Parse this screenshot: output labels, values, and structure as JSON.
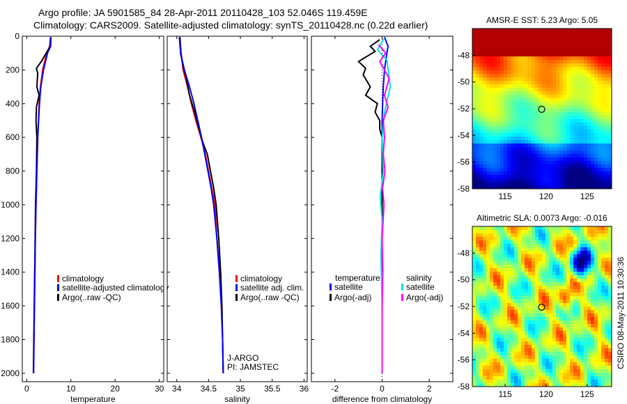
{
  "title_line1": "Argo profile: JA 5901585_84 28-Apr-2011 20110428_103 52.046S 119.459E",
  "title_line2": "Climatology: CARS2009. Satellite-adjusted climatology: synTS_20110428.nc (0.22d earlier)",
  "stamp": "CSIRO 08-May-2011 10:30:36",
  "colors": {
    "clim": "#ff0000",
    "sat": "#0000ff",
    "argo": "#000000",
    "sat_s": "#00e5e5",
    "argo_s": "#ff00ff"
  },
  "chart_data": [
    {
      "type": "line",
      "xlabel": "temperature",
      "ylabel": "",
      "xlim": [
        -1,
        31
      ],
      "ylim": [
        2050,
        0
      ],
      "xticks": [
        0,
        10,
        20,
        30
      ],
      "yticks": [
        0,
        200,
        400,
        600,
        800,
        1000,
        1200,
        1400,
        1600,
        1800,
        2000
      ],
      "legend": [
        "climatology",
        "satellite-adjusted climatology",
        "Argo(..raw -QC)"
      ],
      "series": [
        {
          "name": "climatology",
          "color": "clim",
          "points": [
            [
              5.4,
              10
            ],
            [
              5.2,
              60
            ],
            [
              4.5,
              100
            ],
            [
              3.6,
              200
            ],
            [
              3.1,
              300
            ],
            [
              2.8,
              400
            ],
            [
              2.5,
              600
            ],
            [
              2.3,
              800
            ],
            [
              2.1,
              1000
            ],
            [
              1.95,
              1200
            ],
            [
              1.85,
              1400
            ],
            [
              1.75,
              1600
            ],
            [
              1.65,
              1800
            ],
            [
              1.55,
              2000
            ]
          ]
        },
        {
          "name": "argo",
          "color": "argo",
          "points": [
            [
              5.4,
              5
            ],
            [
              5.3,
              60
            ],
            [
              4.4,
              100
            ],
            [
              3.3,
              150
            ],
            [
              2.2,
              190
            ],
            [
              2.5,
              220
            ],
            [
              2.3,
              300
            ],
            [
              2.8,
              350
            ],
            [
              2.2,
              420
            ],
            [
              2.1,
              500
            ],
            [
              2.3,
              600
            ],
            [
              2.2,
              800
            ],
            [
              2.0,
              1000
            ],
            [
              1.9,
              1200
            ],
            [
              1.8,
              1400
            ],
            [
              1.7,
              1600
            ],
            [
              1.6,
              1800
            ],
            [
              1.5,
              2000
            ]
          ]
        },
        {
          "name": "satellite-adjusted",
          "color": "sat",
          "points": [
            [
              5.5,
              5
            ],
            [
              5.4,
              60
            ],
            [
              4.7,
              100
            ],
            [
              3.8,
              200
            ],
            [
              3.2,
              300
            ],
            [
              2.9,
              400
            ],
            [
              2.5,
              600
            ],
            [
              2.3,
              800
            ],
            [
              2.1,
              1000
            ],
            [
              1.95,
              1200
            ],
            [
              1.85,
              1400
            ],
            [
              1.75,
              1600
            ],
            [
              1.65,
              1800
            ],
            [
              1.55,
              2000
            ]
          ]
        }
      ]
    },
    {
      "type": "line",
      "xlabel": "salinity",
      "ylabel": "",
      "xlim": [
        33.85,
        36.05
      ],
      "ylim": [
        2050,
        0
      ],
      "xticks": [
        34,
        34.5,
        35,
        35.5,
        36
      ],
      "yticks": [
        0,
        200,
        400,
        600,
        800,
        1000,
        1200,
        1400,
        1600,
        1800,
        2000
      ],
      "legend": [
        "climatology",
        "satellite adj. clim.",
        "Argo(..raw -QC)"
      ],
      "annotations": [
        "J-ARGO",
        "PI: JAMSTEC"
      ],
      "series": [
        {
          "name": "climatology",
          "color": "clim",
          "points": [
            [
              34.05,
              10
            ],
            [
              34.07,
              100
            ],
            [
              34.1,
              200
            ],
            [
              34.17,
              300
            ],
            [
              34.23,
              400
            ],
            [
              34.3,
              500
            ],
            [
              34.38,
              600
            ],
            [
              34.45,
              700
            ],
            [
              34.5,
              800
            ],
            [
              34.55,
              900
            ],
            [
              34.6,
              1000
            ],
            [
              34.63,
              1200
            ],
            [
              34.67,
              1400
            ],
            [
              34.7,
              1600
            ],
            [
              34.72,
              1800
            ],
            [
              34.73,
              2000
            ]
          ]
        },
        {
          "name": "argo",
          "color": "argo",
          "points": [
            [
              34.05,
              5
            ],
            [
              34.06,
              100
            ],
            [
              34.1,
              180
            ],
            [
              34.15,
              250
            ],
            [
              34.2,
              350
            ],
            [
              34.28,
              450
            ],
            [
              34.35,
              550
            ],
            [
              34.4,
              620
            ],
            [
              34.48,
              700
            ],
            [
              34.53,
              800
            ],
            [
              34.58,
              900
            ],
            [
              34.62,
              1000
            ],
            [
              34.66,
              1200
            ],
            [
              34.69,
              1400
            ],
            [
              34.71,
              1600
            ],
            [
              34.72,
              1800
            ],
            [
              34.73,
              2000
            ]
          ]
        },
        {
          "name": "satellite-adjusted",
          "color": "sat",
          "points": [
            [
              34.04,
              5
            ],
            [
              34.06,
              100
            ],
            [
              34.12,
              200
            ],
            [
              34.2,
              300
            ],
            [
              34.27,
              400
            ],
            [
              34.33,
              500
            ],
            [
              34.39,
              600
            ],
            [
              34.44,
              700
            ],
            [
              34.49,
              800
            ],
            [
              34.54,
              900
            ],
            [
              34.58,
              1000
            ],
            [
              34.63,
              1200
            ],
            [
              34.67,
              1400
            ],
            [
              34.7,
              1600
            ],
            [
              34.72,
              1800
            ],
            [
              34.73,
              2000
            ]
          ]
        }
      ]
    },
    {
      "type": "line",
      "xlabel": "difference from climatology",
      "ylabel": "",
      "xlim": [
        -3,
        3
      ],
      "ylim": [
        2050,
        0
      ],
      "xticks": [
        -2,
        0,
        2
      ],
      "yticks": [
        0,
        200,
        400,
        600,
        800,
        1000,
        1200,
        1400,
        1600,
        1800,
        2000
      ],
      "legend_headers": [
        "temperature",
        "salinity"
      ],
      "legend": [
        "satellite",
        "Argo(-adj)",
        "satellite",
        "Argo(-adj)"
      ],
      "series": [
        {
          "name": "temperature satellite",
          "color": "sat",
          "points": [
            [
              0.1,
              5
            ],
            [
              0.25,
              60
            ],
            [
              0.2,
              100
            ],
            [
              0.1,
              200
            ],
            [
              0.05,
              300
            ],
            [
              0.02,
              400
            ],
            [
              0,
              500
            ],
            [
              0,
              800
            ],
            [
              0,
              1200
            ],
            [
              0,
              1600
            ],
            [
              0,
              2000
            ]
          ]
        },
        {
          "name": "temperature Argo(-adj)",
          "color": "argo",
          "points": [
            [
              -0.1,
              20
            ],
            [
              -0.5,
              60
            ],
            [
              -0.3,
              90
            ],
            [
              -1.0,
              150
            ],
            [
              -0.7,
              190
            ],
            [
              -0.8,
              230
            ],
            [
              -0.5,
              300
            ],
            [
              -0.7,
              350
            ],
            [
              -0.2,
              400
            ],
            [
              -0.3,
              450
            ],
            [
              -0.1,
              500
            ],
            [
              -0.1,
              550
            ],
            [
              0,
              600
            ],
            [
              0,
              800
            ],
            [
              0,
              1000
            ],
            [
              0,
              1400
            ],
            [
              0,
              1800
            ],
            [
              0,
              2000
            ]
          ]
        },
        {
          "name": "salinity satellite",
          "color": "sat_s",
          "points": [
            [
              0.1,
              10
            ],
            [
              -0.2,
              80
            ],
            [
              0.2,
              140
            ],
            [
              0.35,
              300
            ],
            [
              0.1,
              450
            ],
            [
              0,
              600
            ],
            [
              0.05,
              800
            ],
            [
              -0.08,
              950
            ],
            [
              0,
              1100
            ],
            [
              -0.05,
              1300
            ],
            [
              0,
              1600
            ],
            [
              0,
              2000
            ]
          ]
        },
        {
          "name": "salinity Argo(-adj)",
          "color": "argo_s",
          "points": [
            [
              -0.15,
              50
            ],
            [
              0.15,
              100
            ],
            [
              -0.1,
              150
            ],
            [
              0.3,
              250
            ],
            [
              0.1,
              350
            ],
            [
              0.25,
              420
            ],
            [
              0.05,
              500
            ],
            [
              0.1,
              600
            ],
            [
              0.05,
              700
            ],
            [
              0.12,
              800
            ],
            [
              0.02,
              900
            ],
            [
              0.08,
              1000
            ],
            [
              0,
              1200
            ],
            [
              0.03,
              1400
            ],
            [
              0,
              1600
            ],
            [
              0,
              2000
            ]
          ]
        }
      ]
    },
    {
      "type": "heatmap",
      "title": "AMSR-E SST: 5.23 Argo: 5.05",
      "xlim": [
        111,
        128
      ],
      "ylim": [
        -58,
        -46
      ],
      "xticks": [
        115,
        120,
        125
      ],
      "yticks": [
        -48,
        -50,
        -52,
        -54,
        -56,
        -58
      ],
      "marker": [
        119.459,
        -52.046
      ]
    },
    {
      "type": "heatmap",
      "title": "Altimetric SLA: 0.0073 Argo: -0.016",
      "xlim": [
        111,
        128
      ],
      "ylim": [
        -58,
        -46
      ],
      "xticks": [
        115,
        120,
        125
      ],
      "yticks": [
        -48,
        -50,
        -52,
        -54,
        -56,
        -58
      ],
      "marker": [
        119.459,
        -52.046
      ]
    }
  ]
}
